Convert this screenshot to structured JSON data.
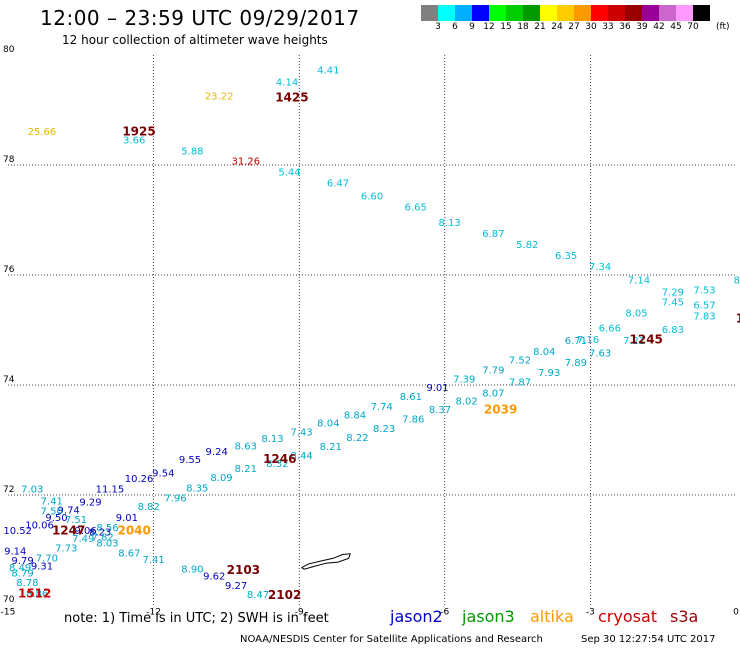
{
  "header": {
    "title": "12:00 – 23:59 UTC 09/29/2017",
    "subtitle": "12 hour collection of altimeter wave heights"
  },
  "colorbar": {
    "colors": [
      "#808080",
      "#00ffff",
      "#00b0ff",
      "#0000ff",
      "#00ff00",
      "#00cc00",
      "#009900",
      "#ffff00",
      "#ffcc00",
      "#ff9900",
      "#ff0000",
      "#cc0000",
      "#990000",
      "#990099",
      "#cc66cc",
      "#ff99ff",
      "#000000"
    ],
    "labels": [
      "3",
      "6",
      "9",
      "12",
      "15",
      "18",
      "21",
      "24",
      "27",
      "30",
      "33",
      "36",
      "39",
      "42",
      "45",
      "70"
    ],
    "unit": "(ft)"
  },
  "footer": {
    "note": "note: 1) Time is in UTC; 2) SWH is in feet",
    "legend": [
      {
        "name": "jason2",
        "color": "#0000cc"
      },
      {
        "name": "jason3",
        "color": "#009900"
      },
      {
        "name": "altika",
        "color": "#ff9900"
      },
      {
        "name": "cryosat",
        "color": "#cc0000"
      },
      {
        "name": "s3a",
        "color": "#990000"
      }
    ],
    "credit": "NOAA/NESDIS Center for Satellite Applications and Research",
    "timestamp": "Sep 30 12:27:54 UTC 2017"
  },
  "chart_data": {
    "type": "scatter",
    "title": "12:00 – 23:59 UTC 09/29/2017",
    "xlim": [
      -15,
      0
    ],
    "ylim": [
      70,
      80
    ],
    "x_ticks": [
      "-15",
      "-12",
      "-9",
      "-6",
      "-3",
      "0"
    ],
    "y_ticks": [
      "70",
      "72",
      "74",
      "76",
      "78",
      "80"
    ],
    "grid": true,
    "colors": {
      "cyan": "#00bfd8",
      "teal": "#00a8c8",
      "blue": "#0000bb",
      "orange": "#ff9900",
      "red": "#cc0000",
      "maroon": "#770000",
      "yellow": "#e8b800"
    },
    "swh_labels": [
      {
        "x": -8.4,
        "y": 79.72,
        "text": "4.41",
        "c": "cyan"
      },
      {
        "x": -9.25,
        "y": 79.5,
        "text": "4.14",
        "c": "cyan"
      },
      {
        "x": -10.65,
        "y": 79.25,
        "text": "23.22",
        "c": "yellow"
      },
      {
        "x": -14.3,
        "y": 78.6,
        "text": "25.66",
        "c": "yellow"
      },
      {
        "x": -12.4,
        "y": 78.45,
        "text": "3.66",
        "c": "cyan"
      },
      {
        "x": -11.2,
        "y": 78.25,
        "text": "5.88",
        "c": "cyan"
      },
      {
        "x": -10.1,
        "y": 78.06,
        "text": "31.26",
        "c": "red"
      },
      {
        "x": -9.2,
        "y": 77.86,
        "text": "5.44",
        "c": "cyan"
      },
      {
        "x": -8.2,
        "y": 77.66,
        "text": "6.47",
        "c": "cyan"
      },
      {
        "x": -7.5,
        "y": 77.43,
        "text": "6.60",
        "c": "cyan"
      },
      {
        "x": -6.6,
        "y": 77.23,
        "text": "6.65",
        "c": "cyan"
      },
      {
        "x": -5.9,
        "y": 76.95,
        "text": "8.13",
        "c": "cyan"
      },
      {
        "x": -5.0,
        "y": 76.75,
        "text": "6.87",
        "c": "cyan"
      },
      {
        "x": -4.3,
        "y": 76.55,
        "text": "5.82",
        "c": "cyan"
      },
      {
        "x": -3.5,
        "y": 76.35,
        "text": "6.35",
        "c": "cyan"
      },
      {
        "x": -2.8,
        "y": 76.15,
        "text": "7.34",
        "c": "cyan"
      },
      {
        "x": -2.0,
        "y": 75.9,
        "text": "7.14",
        "c": "cyan"
      },
      {
        "x": -1.3,
        "y": 75.68,
        "text": "7.29",
        "c": "cyan"
      },
      {
        "x": -0.65,
        "y": 75.72,
        "text": "7.53",
        "c": "cyan"
      },
      {
        "x": 0.05,
        "y": 75.9,
        "text": "8.",
        "c": "cyan"
      },
      {
        "x": -1.3,
        "y": 75.5,
        "text": "7.45",
        "c": "cyan"
      },
      {
        "x": -0.65,
        "y": 75.45,
        "text": "6.57",
        "c": "cyan"
      },
      {
        "x": -2.05,
        "y": 75.3,
        "text": "8.05",
        "c": "cyan"
      },
      {
        "x": -0.65,
        "y": 75.25,
        "text": "7.83",
        "c": "cyan"
      },
      {
        "x": -2.6,
        "y": 75.03,
        "text": "6.66",
        "c": "cyan"
      },
      {
        "x": -1.3,
        "y": 75.0,
        "text": "6.83",
        "c": "cyan"
      },
      {
        "x": -3.05,
        "y": 74.82,
        "text": "7.16",
        "c": "cyan"
      },
      {
        "x": -3.3,
        "y": 74.8,
        "text": "6.71",
        "c": "teal"
      },
      {
        "x": -2.1,
        "y": 74.8,
        "text": "7.21",
        "c": "cyan"
      },
      {
        "x": -3.95,
        "y": 74.6,
        "text": "8.04",
        "c": "teal"
      },
      {
        "x": -2.8,
        "y": 74.57,
        "text": "7.63",
        "c": "teal"
      },
      {
        "x": -4.45,
        "y": 74.45,
        "text": "7.52",
        "c": "teal"
      },
      {
        "x": -3.3,
        "y": 74.4,
        "text": "7.89",
        "c": "teal"
      },
      {
        "x": -5.0,
        "y": 74.26,
        "text": "7.79",
        "c": "teal"
      },
      {
        "x": -3.85,
        "y": 74.22,
        "text": "7.93",
        "c": "teal"
      },
      {
        "x": -5.6,
        "y": 74.1,
        "text": "7.39",
        "c": "teal"
      },
      {
        "x": -4.45,
        "y": 74.05,
        "text": "7.87",
        "c": "teal"
      },
      {
        "x": -6.15,
        "y": 73.95,
        "text": "9.01",
        "c": "blue"
      },
      {
        "x": -5.0,
        "y": 73.85,
        "text": "8.07",
        "c": "teal"
      },
      {
        "x": -6.7,
        "y": 73.78,
        "text": "8.61",
        "c": "teal"
      },
      {
        "x": -5.55,
        "y": 73.7,
        "text": "8.02",
        "c": "teal"
      },
      {
        "x": -7.3,
        "y": 73.6,
        "text": "7.74",
        "c": "teal"
      },
      {
        "x": -6.1,
        "y": 73.55,
        "text": "8.37",
        "c": "teal"
      },
      {
        "x": -7.85,
        "y": 73.45,
        "text": "8.84",
        "c": "teal"
      },
      {
        "x": -6.65,
        "y": 73.37,
        "text": "7.86",
        "c": "teal"
      },
      {
        "x": -8.4,
        "y": 73.3,
        "text": "8.04",
        "c": "teal"
      },
      {
        "x": -7.25,
        "y": 73.2,
        "text": "8.23",
        "c": "teal"
      },
      {
        "x": -8.95,
        "y": 73.14,
        "text": "7.43",
        "c": "teal"
      },
      {
        "x": -7.8,
        "y": 73.04,
        "text": "8.22",
        "c": "teal"
      },
      {
        "x": -9.55,
        "y": 73.02,
        "text": "8.13",
        "c": "teal"
      },
      {
        "x": -8.35,
        "y": 72.87,
        "text": "8.21",
        "c": "teal"
      },
      {
        "x": -10.1,
        "y": 72.88,
        "text": "8.63",
        "c": "teal"
      },
      {
        "x": -8.95,
        "y": 72.71,
        "text": "8.44",
        "c": "teal"
      },
      {
        "x": -10.7,
        "y": 72.78,
        "text": "9.24",
        "c": "blue"
      },
      {
        "x": -9.45,
        "y": 72.56,
        "text": "8.32",
        "c": "teal"
      },
      {
        "x": -11.25,
        "y": 72.64,
        "text": "9.55",
        "c": "blue"
      },
      {
        "x": -10.1,
        "y": 72.47,
        "text": "8.21",
        "c": "teal"
      },
      {
        "x": -10.6,
        "y": 72.31,
        "text": "8.09",
        "c": "teal"
      },
      {
        "x": -11.8,
        "y": 72.39,
        "text": "9.54",
        "c": "blue"
      },
      {
        "x": -11.1,
        "y": 72.12,
        "text": "8.35",
        "c": "teal"
      },
      {
        "x": -12.3,
        "y": 72.29,
        "text": "10.26",
        "c": "blue"
      },
      {
        "x": -11.55,
        "y": 71.94,
        "text": "7.96",
        "c": "teal"
      },
      {
        "x": -12.9,
        "y": 72.1,
        "text": "11.15",
        "c": "blue"
      },
      {
        "x": -12.1,
        "y": 71.78,
        "text": "8.82",
        "c": "teal"
      },
      {
        "x": -13.3,
        "y": 71.86,
        "text": "9.29",
        "c": "blue"
      },
      {
        "x": -12.55,
        "y": 71.58,
        "text": "9.01",
        "c": "blue"
      },
      {
        "x": -14.5,
        "y": 72.1,
        "text": "7.03",
        "c": "teal"
      },
      {
        "x": -14.1,
        "y": 71.88,
        "text": "7.41",
        "c": "teal"
      },
      {
        "x": -13.75,
        "y": 71.72,
        "text": "9.74",
        "c": "blue"
      },
      {
        "x": -14.1,
        "y": 71.7,
        "text": "7.50",
        "c": "teal"
      },
      {
        "x": -14.0,
        "y": 71.58,
        "text": "9.50",
        "c": "blue"
      },
      {
        "x": -13.6,
        "y": 71.55,
        "text": "7.51",
        "c": "teal"
      },
      {
        "x": -14.35,
        "y": 71.45,
        "text": "10.06",
        "c": "blue"
      },
      {
        "x": -12.95,
        "y": 71.4,
        "text": "8.56",
        "c": "teal"
      },
      {
        "x": -13.4,
        "y": 71.35,
        "text": "9.06",
        "c": "blue"
      },
      {
        "x": -14.8,
        "y": 71.35,
        "text": "10.52",
        "c": "blue"
      },
      {
        "x": -13.1,
        "y": 71.32,
        "text": "8.23",
        "c": "blue"
      },
      {
        "x": -13.45,
        "y": 71.2,
        "text": "7.49",
        "c": "teal"
      },
      {
        "x": -13.05,
        "y": 71.23,
        "text": "7.82",
        "c": "teal"
      },
      {
        "x": -12.95,
        "y": 71.12,
        "text": "8.03",
        "c": "teal"
      },
      {
        "x": -13.8,
        "y": 71.03,
        "text": "7.73",
        "c": "teal"
      },
      {
        "x": -12.5,
        "y": 70.94,
        "text": "8.67",
        "c": "teal"
      },
      {
        "x": -14.2,
        "y": 70.85,
        "text": "7.70",
        "c": "teal"
      },
      {
        "x": -12.0,
        "y": 70.82,
        "text": "7.41",
        "c": "teal"
      },
      {
        "x": -14.85,
        "y": 70.97,
        "text": "9.14",
        "c": "blue"
      },
      {
        "x": -14.7,
        "y": 70.8,
        "text": "9.79",
        "c": "blue"
      },
      {
        "x": -14.3,
        "y": 70.7,
        "text": "9.31",
        "c": "blue"
      },
      {
        "x": -14.75,
        "y": 70.67,
        "text": "8.49",
        "c": "teal"
      },
      {
        "x": -14.7,
        "y": 70.57,
        "text": "8.79",
        "c": "teal"
      },
      {
        "x": -11.2,
        "y": 70.65,
        "text": "8.90",
        "c": "teal"
      },
      {
        "x": -10.75,
        "y": 70.52,
        "text": "9.62",
        "c": "blue"
      },
      {
        "x": -14.6,
        "y": 70.4,
        "text": "8.78",
        "c": "teal"
      },
      {
        "x": -10.3,
        "y": 70.35,
        "text": "9.27",
        "c": "blue"
      },
      {
        "x": -14.4,
        "y": 70.2,
        "text": "8.86",
        "c": "teal"
      },
      {
        "x": -9.85,
        "y": 70.18,
        "text": "8.47",
        "c": "teal"
      }
    ],
    "time_labels": [
      {
        "x": -9.15,
        "y": 79.22,
        "text": "1425",
        "c": "maroon"
      },
      {
        "x": -12.3,
        "y": 78.6,
        "text": "1925",
        "c": "maroon"
      },
      {
        "x": -1.85,
        "y": 74.82,
        "text": "1245",
        "c": "maroon"
      },
      {
        "x": -4.85,
        "y": 73.55,
        "text": "2039",
        "c": "orange"
      },
      {
        "x": -9.4,
        "y": 72.65,
        "text": "1246",
        "c": "maroon"
      },
      {
        "x": -13.75,
        "y": 71.35,
        "text": "1247",
        "c": "maroon"
      },
      {
        "x": -12.4,
        "y": 71.35,
        "text": "2040",
        "c": "orange"
      },
      {
        "x": -14.45,
        "y": 70.2,
        "text": "1512",
        "c": "red"
      },
      {
        "x": -10.15,
        "y": 70.63,
        "text": "2103",
        "c": "maroon"
      },
      {
        "x": -9.3,
        "y": 70.17,
        "text": "2102",
        "c": "maroon"
      },
      {
        "x": 0.08,
        "y": 75.2,
        "text": "1",
        "c": "maroon"
      }
    ],
    "coastline": [
      [
        -8.95,
        70.68
      ],
      [
        -8.8,
        70.75
      ],
      [
        -8.55,
        70.8
      ],
      [
        -8.3,
        70.85
      ],
      [
        -8.1,
        70.92
      ],
      [
        -7.95,
        70.93
      ],
      [
        -7.98,
        70.85
      ],
      [
        -8.2,
        70.78
      ],
      [
        -8.45,
        70.76
      ],
      [
        -8.7,
        70.7
      ],
      [
        -8.9,
        70.65
      ],
      [
        -8.95,
        70.68
      ]
    ]
  }
}
